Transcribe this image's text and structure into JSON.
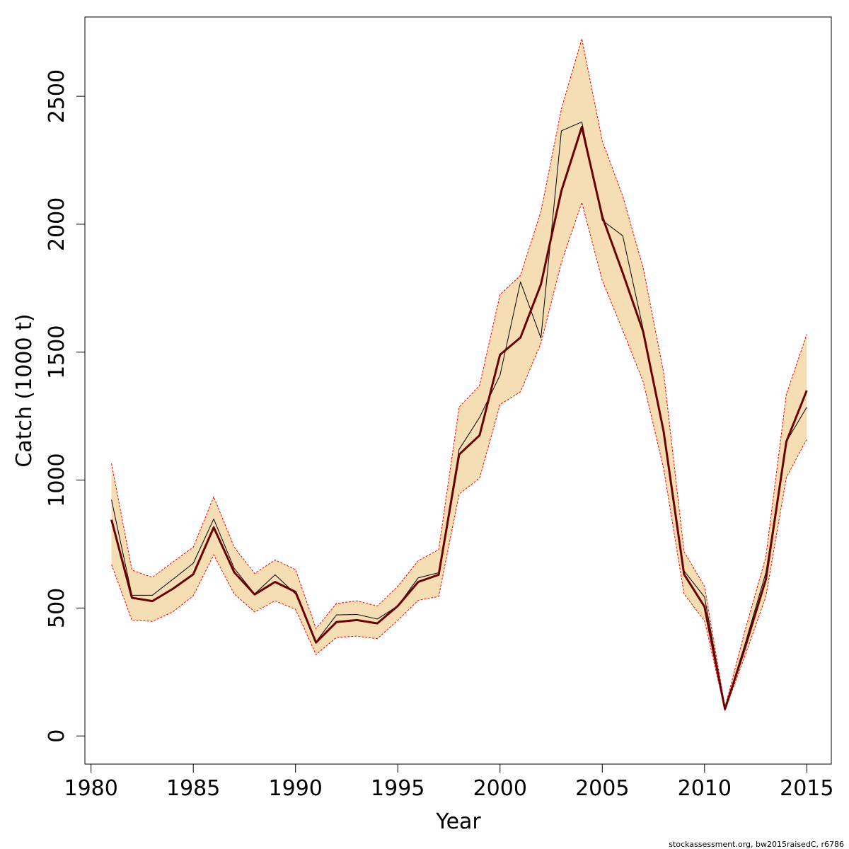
{
  "chart_data": {
    "type": "line",
    "title": "",
    "xlabel": "Year",
    "ylabel": "Catch (1000 t)",
    "xlim": [
      1979.7,
      2016.2
    ],
    "ylim": [
      -110,
      2810
    ],
    "x_ticks": [
      1980,
      1985,
      1990,
      1995,
      2000,
      2005,
      2010,
      2015
    ],
    "y_ticks": [
      0,
      500,
      1000,
      1500,
      2000,
      2500
    ],
    "grid": false,
    "x": [
      1981,
      1982,
      1983,
      1984,
      1985,
      1986,
      1987,
      1988,
      1989,
      1990,
      1991,
      1992,
      1993,
      1994,
      1995,
      1996,
      1997,
      1998,
      1999,
      2000,
      2001,
      2002,
      2003,
      2004,
      2005,
      2006,
      2007,
      2008,
      2009,
      2010,
      2011,
      2012,
      2013,
      2014,
      2015
    ],
    "series": [
      {
        "role": "estimate",
        "color": "#6b0000",
        "values": [
          845,
          540,
          527,
          575,
          632,
          815,
          640,
          553,
          602,
          563,
          365,
          445,
          453,
          440,
          508,
          602,
          630,
          1100,
          1175,
          1490,
          1557,
          1765,
          2130,
          2380,
          2030,
          1810,
          1580,
          1190,
          632,
          505,
          105,
          350,
          612,
          1150,
          1350
        ]
      },
      {
        "role": "observed",
        "color": "#000000",
        "values": [
          923,
          550,
          550,
          612,
          675,
          848,
          655,
          555,
          630,
          555,
          368,
          473,
          475,
          457,
          508,
          618,
          638,
          1120,
          1245,
          1410,
          1775,
          1555,
          2365,
          2400,
          2015,
          1955,
          1590,
          1195,
          645,
          543,
          108,
          365,
          638,
          1150,
          1285
        ]
      }
    ],
    "band": {
      "color": "#f5deb3",
      "edge_color": "#ff0000",
      "lower": [
        670,
        452,
        448,
        485,
        548,
        708,
        555,
        485,
        528,
        495,
        318,
        385,
        390,
        380,
        452,
        530,
        545,
        945,
        1008,
        1295,
        1345,
        1535,
        1850,
        2085,
        1780,
        1585,
        1385,
        1045,
        555,
        450,
        100,
        318,
        545,
        1010,
        1160
      ],
      "upper": [
        1065,
        648,
        620,
        680,
        738,
        935,
        738,
        635,
        688,
        650,
        420,
        518,
        528,
        508,
        585,
        685,
        728,
        1285,
        1370,
        1725,
        1800,
        2050,
        2450,
        2725,
        2325,
        2110,
        1830,
        1420,
        720,
        585,
        112,
        418,
        700,
        1335,
        1570
      ]
    }
  },
  "footnote": "stockassessment.org, bw2015raisedC, r6786"
}
